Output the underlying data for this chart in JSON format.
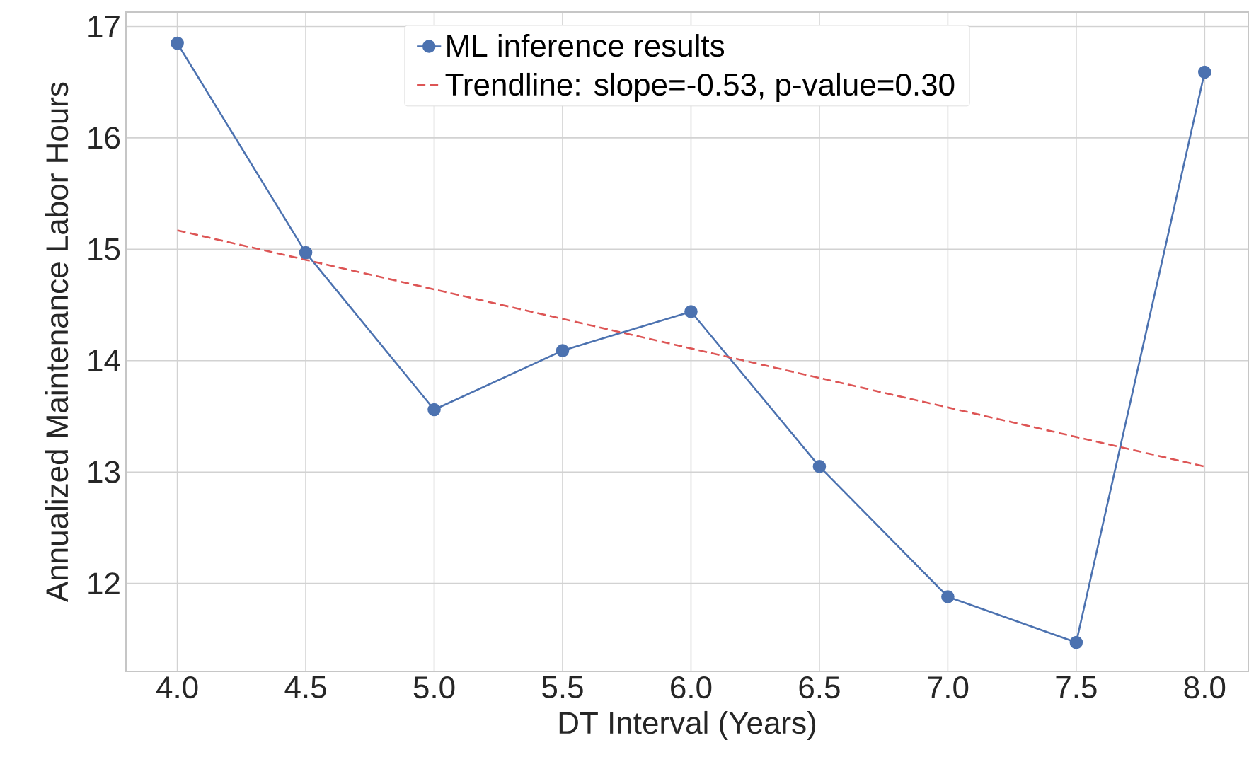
{
  "chart_data": {
    "type": "line",
    "xlabel": "DT Interval (Years)",
    "ylabel": "Annualized Maintenance Labor Hours",
    "x": [
      4.0,
      4.5,
      5.0,
      5.5,
      6.0,
      6.5,
      7.0,
      7.5,
      8.0
    ],
    "series": [
      {
        "name": "ML inference results",
        "color": "#4c72b0",
        "marker": "circle",
        "line_style": "solid",
        "values": [
          16.85,
          14.97,
          13.56,
          14.09,
          14.44,
          13.05,
          11.88,
          11.47,
          16.59
        ]
      },
      {
        "name": "Trendline: slope=-0.53, p-value=0.30",
        "type": "line",
        "color": "#dd5555",
        "marker": "none",
        "line_style": "dashed",
        "x": [
          4.0,
          8.0
        ],
        "values": [
          15.17,
          13.05
        ]
      }
    ],
    "xlim": [
      3.8,
      8.17
    ],
    "ylim": [
      11.21,
      17.13
    ],
    "xticks": [
      {
        "value": 4.0,
        "label": "4.0"
      },
      {
        "value": 4.5,
        "label": "4.5"
      },
      {
        "value": 5.0,
        "label": "5.0"
      },
      {
        "value": 5.5,
        "label": "5.5"
      },
      {
        "value": 6.0,
        "label": "6.0"
      },
      {
        "value": 6.5,
        "label": "6.5"
      },
      {
        "value": 7.0,
        "label": "7.0"
      },
      {
        "value": 7.5,
        "label": "7.5"
      },
      {
        "value": 8.0,
        "label": "8.0"
      }
    ],
    "yticks": [
      12,
      13,
      14,
      15,
      16,
      17
    ],
    "grid": true,
    "legend": "top"
  }
}
